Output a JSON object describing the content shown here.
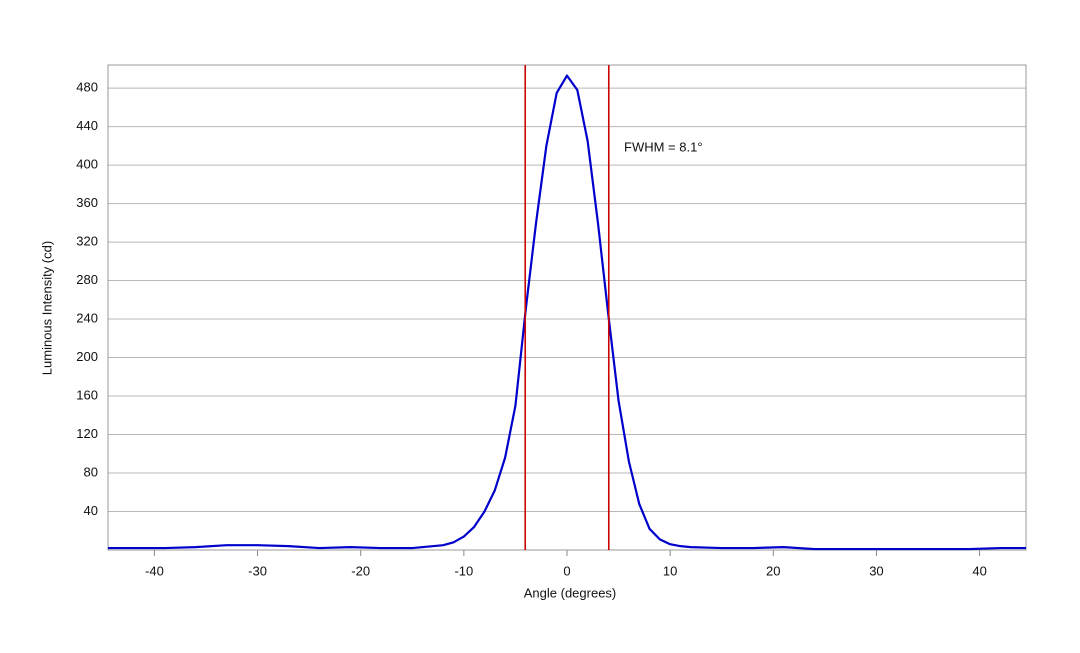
{
  "chart_data": {
    "type": "line",
    "x_label": "Angle (degrees)",
    "y_label": "Luminous Intensity (cd)",
    "annotation": "FWHM = 8.1°",
    "x": [
      -44.5,
      -42,
      -39,
      -36,
      -33,
      -30,
      -27,
      -24,
      -21,
      -18,
      -15,
      -12,
      -11,
      -10,
      -9,
      -8,
      -7,
      -6,
      -5,
      -4,
      -3,
      -2,
      -1,
      0,
      1,
      2,
      3,
      4,
      5,
      6,
      7,
      8,
      9,
      10,
      11,
      12,
      15,
      18,
      21,
      24,
      27,
      30,
      33,
      36,
      39,
      42,
      44.5
    ],
    "series": [
      {
        "color": "#0000cc",
        "values": [
          2,
          2,
          2,
          3,
          5,
          5,
          4,
          2,
          3,
          2,
          2,
          5,
          8,
          14,
          24,
          40,
          62,
          96,
          150,
          250,
          340,
          420,
          475,
          493,
          478,
          425,
          340,
          245,
          155,
          92,
          48,
          22,
          11,
          6,
          4,
          3,
          2,
          2,
          3,
          1,
          1,
          1,
          1,
          1,
          1,
          2,
          2
        ]
      }
    ],
    "vlines": [
      -4.05,
      4.05
    ],
    "vline_color": "#cc0000",
    "xlim": [
      -44.5,
      44.5
    ],
    "ylim": [
      0,
      504
    ],
    "xticks": [
      -40,
      -30,
      -20,
      -10,
      0,
      10,
      20,
      30,
      40
    ],
    "yticks": [
      40,
      80,
      120,
      160,
      200,
      240,
      280,
      320,
      360,
      400,
      440,
      480
    ],
    "grid": true
  }
}
